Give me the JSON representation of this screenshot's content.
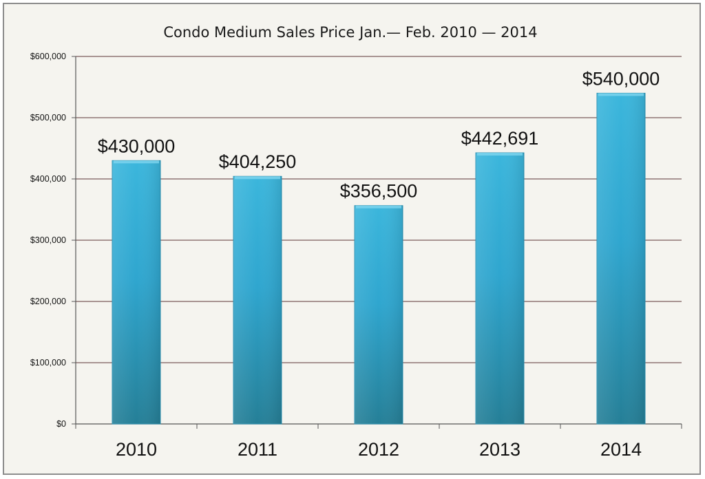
{
  "chart_data": {
    "type": "bar",
    "title": "Condo Medium Sales Price Jan.— Feb.  2010 — 2014",
    "categories": [
      "2010",
      "2011",
      "2012",
      "2013",
      "2014"
    ],
    "values": [
      430000,
      404250,
      356500,
      442691,
      540000
    ],
    "data_labels": [
      "$430,000",
      "$404,250",
      "$356,500",
      "$442,691",
      "$540,000"
    ],
    "yticks": [
      0,
      100000,
      200000,
      300000,
      400000,
      500000,
      600000
    ],
    "ytick_labels": [
      "$0",
      "$100,000",
      "$200,000",
      "$300,000",
      "$400,000",
      "$500,000",
      "$600,000"
    ],
    "ylim": [
      0,
      600000
    ],
    "xlabel": "",
    "ylabel": "",
    "grid": true,
    "legend": "none",
    "colors": {
      "bar": "#2fa6cf",
      "bar_dark": "#257f97",
      "grid": "#7a5a5a",
      "background": "#f5f4ef",
      "frame": "#8c8c8c"
    }
  }
}
